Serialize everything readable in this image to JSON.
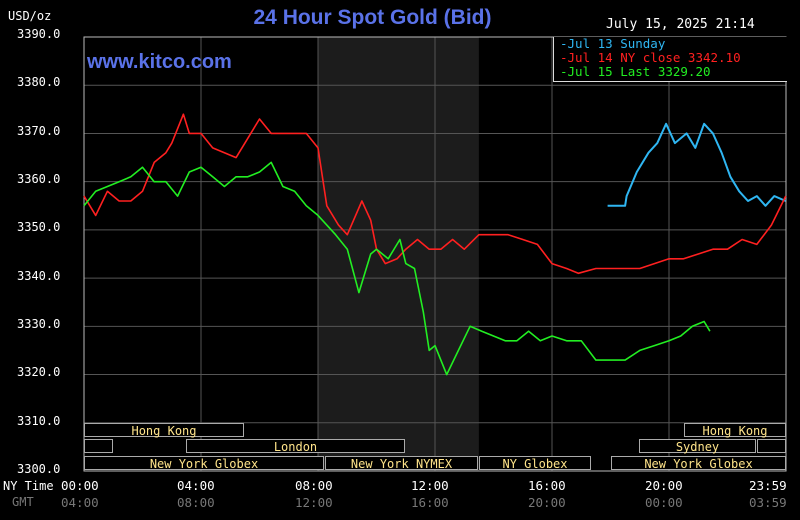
{
  "header": {
    "title": "24 Hour Spot Gold (Bid)",
    "units": "USD/oz",
    "datetime": "July 15, 2025 21:14",
    "watermark": "www.kitco.com"
  },
  "legend": {
    "sunday": "-Jul 13 Sunday",
    "ny_close": "-Jul 14 NY close 3342.10",
    "last": "-Jul 15 Last 3329.20"
  },
  "axis": {
    "row1_label": "NY Time",
    "row2_label": "GMT",
    "ny_ticks": [
      "00:00",
      "04:00",
      "08:00",
      "12:00",
      "16:00",
      "20:00",
      "23:59"
    ],
    "gmt_ticks": [
      "04:00",
      "08:00",
      "12:00",
      "16:00",
      "20:00",
      "00:00",
      "03:59"
    ],
    "y_ticks": [
      "3390.0",
      "3380.0",
      "3370.0",
      "3360.0",
      "3350.0",
      "3340.0",
      "3330.0",
      "3320.0",
      "3310.0",
      "3300.0"
    ]
  },
  "sessions": {
    "hong_kong_1": "Hong Kong",
    "london": "London",
    "new_york_globex_1": "New York Globex",
    "new_york_nymex": "New York NYMEX",
    "ny_globex": "NY Globex",
    "hong_kong_2": "Hong Kong",
    "sydney": "Sydney",
    "new_york_globex_2": "New York Globex"
  },
  "colors": {
    "sunday": "#2fb6f2",
    "ny_close": "#ff2020",
    "last": "#22ee22",
    "title": "#5a72e8",
    "grid": "#555555",
    "shade": "#1c1c1c"
  },
  "chart_data": {
    "type": "line",
    "title": "24 Hour Spot Gold (Bid)",
    "ylabel": "USD/oz",
    "xlabel": "NY Time",
    "ylim": [
      3300,
      3390
    ],
    "xlim_hours": [
      0,
      24
    ],
    "shaded_hours": [
      8,
      13.5
    ],
    "series": [
      {
        "name": "Jul 13 Sunday",
        "color": "#2fb6f2",
        "x": [
          17.9,
          18.5,
          18.55,
          18.9,
          19.3,
          19.6,
          19.9,
          20.2,
          20.6,
          20.9,
          21.2,
          21.5,
          21.8,
          22.1,
          22.4,
          22.7,
          23.0,
          23.3,
          23.6,
          23.99
        ],
        "y": [
          3355,
          3355,
          3357,
          3362,
          3366,
          3368,
          3372,
          3368,
          3370,
          3367,
          3372,
          3370,
          3366,
          3361,
          3358,
          3356,
          3357,
          3355,
          3357,
          3356
        ]
      },
      {
        "name": "Jul 14 NY close",
        "color": "#ff2020",
        "x": [
          0,
          0.4,
          0.8,
          1.2,
          1.6,
          2.0,
          2.4,
          2.8,
          3.0,
          3.4,
          3.6,
          4.0,
          4.4,
          4.8,
          5.2,
          5.6,
          6.0,
          6.4,
          6.8,
          7.2,
          7.6,
          8.0,
          8.3,
          8.7,
          9.0,
          9.5,
          9.8,
          10.0,
          10.3,
          10.7,
          11.0,
          11.4,
          11.8,
          12.2,
          12.6,
          13.0,
          13.5,
          14.0,
          14.5,
          15.0,
          15.5,
          16.0,
          16.5,
          16.9,
          17.5,
          18.0,
          18.5,
          19.0,
          19.5,
          20.0,
          20.5,
          21.0,
          21.5,
          22.0,
          22.5,
          23.0,
          23.5,
          23.99
        ],
        "y": [
          3357,
          3353,
          3358,
          3356,
          3356,
          3358,
          3364,
          3366,
          3368,
          3374,
          3370,
          3370,
          3367,
          3366,
          3365,
          3369,
          3373,
          3370,
          3370,
          3370,
          3370,
          3367,
          3355,
          3351,
          3349,
          3356,
          3352,
          3346,
          3343,
          3344,
          3346,
          3348,
          3346,
          3346,
          3348,
          3346,
          3349,
          3349,
          3349,
          3348,
          3347,
          3343,
          3342,
          3341,
          3342,
          3342,
          3342,
          3342,
          3343,
          3344,
          3344,
          3345,
          3346,
          3346,
          3348,
          3347,
          3351,
          3357
        ]
      },
      {
        "name": "Jul 15 Last",
        "color": "#22ee22",
        "x": [
          0,
          0.4,
          0.8,
          1.2,
          1.6,
          2.0,
          2.4,
          2.8,
          3.2,
          3.6,
          4.0,
          4.4,
          4.8,
          5.2,
          5.6,
          6.0,
          6.4,
          6.8,
          7.2,
          7.6,
          8.0,
          8.3,
          8.6,
          9.0,
          9.4,
          9.8,
          10.0,
          10.4,
          10.8,
          11.0,
          11.3,
          11.6,
          11.8,
          12.0,
          12.4,
          12.8,
          13.2,
          13.6,
          14.0,
          14.4,
          14.8,
          15.2,
          15.6,
          16.0,
          16.5,
          17.0,
          17.5,
          18.0,
          18.5,
          19.0,
          19.5,
          20.0,
          20.4,
          20.8,
          21.2,
          21.4
        ],
        "y": [
          3355,
          3358,
          3359,
          3360,
          3361,
          3363,
          3360,
          3360,
          3357,
          3362,
          3363,
          3361,
          3359,
          3361,
          3361,
          3362,
          3364,
          3359,
          3358,
          3355,
          3353,
          3351,
          3349,
          3346,
          3337,
          3345,
          3346,
          3344,
          3348,
          3343,
          3342,
          3333,
          3325,
          3326,
          3320,
          3325,
          3330,
          3329,
          3328,
          3327,
          3327,
          3329,
          3327,
          3328,
          3327,
          3327,
          3323,
          3323,
          3323,
          3325,
          3326,
          3327,
          3328,
          3330,
          3331,
          3329
        ]
      }
    ]
  }
}
